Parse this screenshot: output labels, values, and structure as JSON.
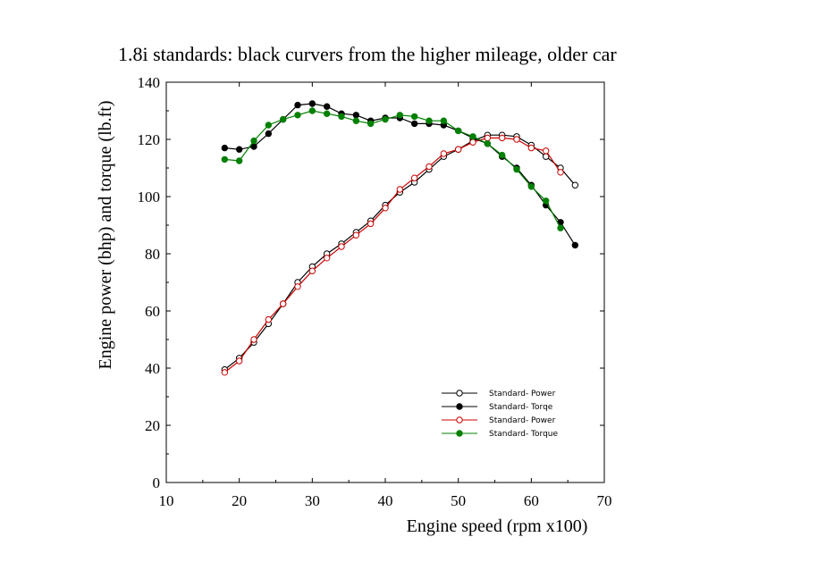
{
  "chart_data": {
    "type": "line",
    "title": "1.8i standards: black curvers from the higher mileage, older car",
    "xlabel": "Engine speed (rpm x100)",
    "ylabel": "Engine power (bhp) and torque (lb.ft)",
    "xlim": [
      10,
      70
    ],
    "ylim": [
      0,
      140
    ],
    "xticks": [
      "10",
      "20",
      "30",
      "40",
      "50",
      "60",
      "70"
    ],
    "yticks": [
      "0",
      "20",
      "40",
      "60",
      "80",
      "100",
      "120",
      "140"
    ],
    "grid": false,
    "legend_position": "bottom-right",
    "series": [
      {
        "name": "Standard- Power",
        "color": "#000000",
        "marker": "open-circle",
        "x": [
          18,
          20,
          22,
          24,
          26,
          28,
          30,
          32,
          34,
          36,
          38,
          40,
          42,
          44,
          46,
          48,
          50,
          52,
          54,
          56,
          58,
          60,
          62,
          64,
          66
        ],
        "y": [
          39.5,
          43.5,
          49,
          55.5,
          62.5,
          70,
          75.5,
          80,
          83.5,
          87.5,
          91.5,
          97,
          101.5,
          105,
          109.5,
          114,
          116.5,
          119.5,
          121.5,
          121.5,
          121,
          118,
          114,
          110,
          104
        ]
      },
      {
        "name": "Standard- Torqe",
        "color": "#000000",
        "marker": "filled-circle",
        "x": [
          18,
          20,
          22,
          24,
          26,
          28,
          30,
          32,
          34,
          36,
          38,
          40,
          42,
          44,
          46,
          48,
          50,
          52,
          54,
          56,
          58,
          60,
          62,
          64,
          66
        ],
        "y": [
          117,
          116.5,
          117.5,
          122,
          127,
          132,
          132.5,
          131.5,
          129,
          128.5,
          126.5,
          127.5,
          127.5,
          125.5,
          125.5,
          125,
          123,
          120.5,
          118.5,
          114,
          110,
          104,
          97,
          91,
          83
        ]
      },
      {
        "name": "Standard- Power",
        "color": "#cc0000",
        "marker": "open-circle",
        "x": [
          18,
          20,
          22,
          24,
          26,
          28,
          30,
          32,
          34,
          36,
          38,
          40,
          42,
          44,
          46,
          48,
          50,
          52,
          54,
          56,
          58,
          60,
          62,
          64
        ],
        "y": [
          38.5,
          42.5,
          50,
          57,
          62.5,
          68.5,
          74,
          78.5,
          82.5,
          86.5,
          90.5,
          96,
          102.5,
          106.5,
          110.5,
          115,
          116.5,
          119,
          120.5,
          120.5,
          120,
          117,
          116,
          108.5
        ]
      },
      {
        "name": "Standard- Torque",
        "color": "#008000",
        "marker": "filled-circle",
        "x": [
          18,
          20,
          22,
          24,
          26,
          28,
          30,
          32,
          34,
          36,
          38,
          40,
          42,
          44,
          46,
          48,
          50,
          52,
          54,
          56,
          58,
          60,
          62,
          64
        ],
        "y": [
          113,
          112.5,
          119.5,
          125,
          127,
          128.5,
          130,
          129,
          128,
          126.5,
          125.5,
          127,
          128.5,
          128,
          126.5,
          126.5,
          123,
          121,
          118.5,
          114.5,
          109.5,
          103.5,
          98.5,
          89
        ]
      }
    ]
  }
}
